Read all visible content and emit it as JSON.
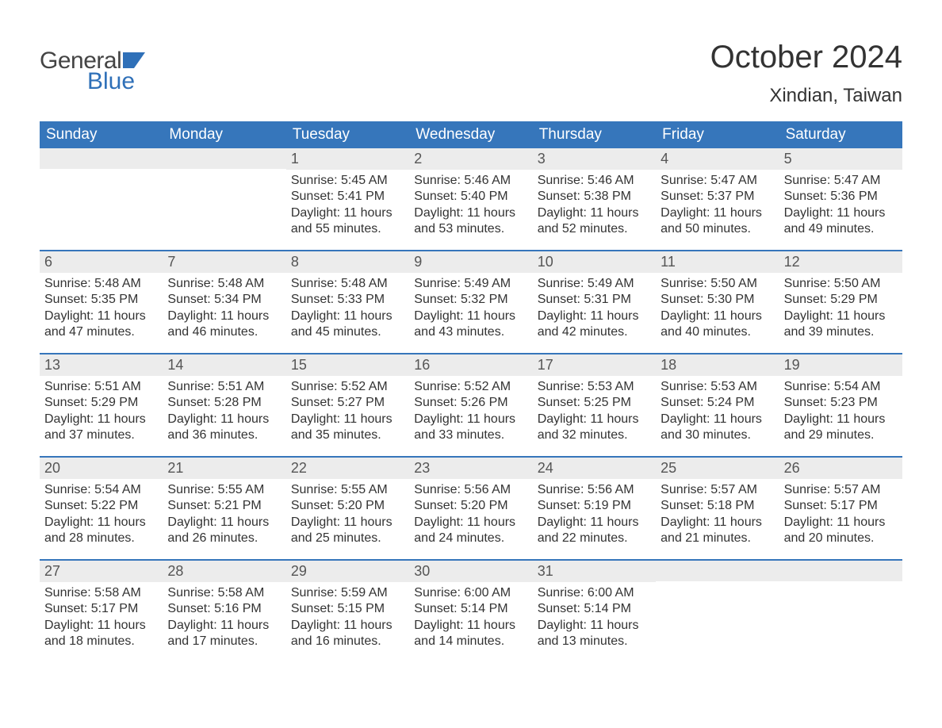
{
  "logo": {
    "text_general": "General",
    "text_blue": "Blue",
    "flag_color": "#2f70b8"
  },
  "header": {
    "month_title": "October 2024",
    "location": "Xindian, Taiwan"
  },
  "colors": {
    "header_bg": "#3676bb",
    "header_text": "#ffffff",
    "daynum_bg": "#ececec",
    "text": "#333333",
    "row_border": "#3676bb"
  },
  "fonts": {
    "month_title_size": 40,
    "location_size": 24,
    "dow_size": 19,
    "daynum_size": 18,
    "body_size": 16
  },
  "days_of_week": [
    "Sunday",
    "Monday",
    "Tuesday",
    "Wednesday",
    "Thursday",
    "Friday",
    "Saturday"
  ],
  "weeks": [
    [
      {
        "empty": true
      },
      {
        "empty": true
      },
      {
        "n": "1",
        "sunrise": "5:45 AM",
        "sunset": "5:41 PM",
        "daylight": "11 hours and 55 minutes."
      },
      {
        "n": "2",
        "sunrise": "5:46 AM",
        "sunset": "5:40 PM",
        "daylight": "11 hours and 53 minutes."
      },
      {
        "n": "3",
        "sunrise": "5:46 AM",
        "sunset": "5:38 PM",
        "daylight": "11 hours and 52 minutes."
      },
      {
        "n": "4",
        "sunrise": "5:47 AM",
        "sunset": "5:37 PM",
        "daylight": "11 hours and 50 minutes."
      },
      {
        "n": "5",
        "sunrise": "5:47 AM",
        "sunset": "5:36 PM",
        "daylight": "11 hours and 49 minutes."
      }
    ],
    [
      {
        "n": "6",
        "sunrise": "5:48 AM",
        "sunset": "5:35 PM",
        "daylight": "11 hours and 47 minutes."
      },
      {
        "n": "7",
        "sunrise": "5:48 AM",
        "sunset": "5:34 PM",
        "daylight": "11 hours and 46 minutes."
      },
      {
        "n": "8",
        "sunrise": "5:48 AM",
        "sunset": "5:33 PM",
        "daylight": "11 hours and 45 minutes."
      },
      {
        "n": "9",
        "sunrise": "5:49 AM",
        "sunset": "5:32 PM",
        "daylight": "11 hours and 43 minutes."
      },
      {
        "n": "10",
        "sunrise": "5:49 AM",
        "sunset": "5:31 PM",
        "daylight": "11 hours and 42 minutes."
      },
      {
        "n": "11",
        "sunrise": "5:50 AM",
        "sunset": "5:30 PM",
        "daylight": "11 hours and 40 minutes."
      },
      {
        "n": "12",
        "sunrise": "5:50 AM",
        "sunset": "5:29 PM",
        "daylight": "11 hours and 39 minutes."
      }
    ],
    [
      {
        "n": "13",
        "sunrise": "5:51 AM",
        "sunset": "5:29 PM",
        "daylight": "11 hours and 37 minutes."
      },
      {
        "n": "14",
        "sunrise": "5:51 AM",
        "sunset": "5:28 PM",
        "daylight": "11 hours and 36 minutes."
      },
      {
        "n": "15",
        "sunrise": "5:52 AM",
        "sunset": "5:27 PM",
        "daylight": "11 hours and 35 minutes."
      },
      {
        "n": "16",
        "sunrise": "5:52 AM",
        "sunset": "5:26 PM",
        "daylight": "11 hours and 33 minutes."
      },
      {
        "n": "17",
        "sunrise": "5:53 AM",
        "sunset": "5:25 PM",
        "daylight": "11 hours and 32 minutes."
      },
      {
        "n": "18",
        "sunrise": "5:53 AM",
        "sunset": "5:24 PM",
        "daylight": "11 hours and 30 minutes."
      },
      {
        "n": "19",
        "sunrise": "5:54 AM",
        "sunset": "5:23 PM",
        "daylight": "11 hours and 29 minutes."
      }
    ],
    [
      {
        "n": "20",
        "sunrise": "5:54 AM",
        "sunset": "5:22 PM",
        "daylight": "11 hours and 28 minutes."
      },
      {
        "n": "21",
        "sunrise": "5:55 AM",
        "sunset": "5:21 PM",
        "daylight": "11 hours and 26 minutes."
      },
      {
        "n": "22",
        "sunrise": "5:55 AM",
        "sunset": "5:20 PM",
        "daylight": "11 hours and 25 minutes."
      },
      {
        "n": "23",
        "sunrise": "5:56 AM",
        "sunset": "5:20 PM",
        "daylight": "11 hours and 24 minutes."
      },
      {
        "n": "24",
        "sunrise": "5:56 AM",
        "sunset": "5:19 PM",
        "daylight": "11 hours and 22 minutes."
      },
      {
        "n": "25",
        "sunrise": "5:57 AM",
        "sunset": "5:18 PM",
        "daylight": "11 hours and 21 minutes."
      },
      {
        "n": "26",
        "sunrise": "5:57 AM",
        "sunset": "5:17 PM",
        "daylight": "11 hours and 20 minutes."
      }
    ],
    [
      {
        "n": "27",
        "sunrise": "5:58 AM",
        "sunset": "5:17 PM",
        "daylight": "11 hours and 18 minutes."
      },
      {
        "n": "28",
        "sunrise": "5:58 AM",
        "sunset": "5:16 PM",
        "daylight": "11 hours and 17 minutes."
      },
      {
        "n": "29",
        "sunrise": "5:59 AM",
        "sunset": "5:15 PM",
        "daylight": "11 hours and 16 minutes."
      },
      {
        "n": "30",
        "sunrise": "6:00 AM",
        "sunset": "5:14 PM",
        "daylight": "11 hours and 14 minutes."
      },
      {
        "n": "31",
        "sunrise": "6:00 AM",
        "sunset": "5:14 PM",
        "daylight": "11 hours and 13 minutes."
      },
      {
        "empty": true
      },
      {
        "empty": true
      }
    ]
  ],
  "labels": {
    "sunrise": "Sunrise: ",
    "sunset": "Sunset: ",
    "daylight": "Daylight: "
  }
}
